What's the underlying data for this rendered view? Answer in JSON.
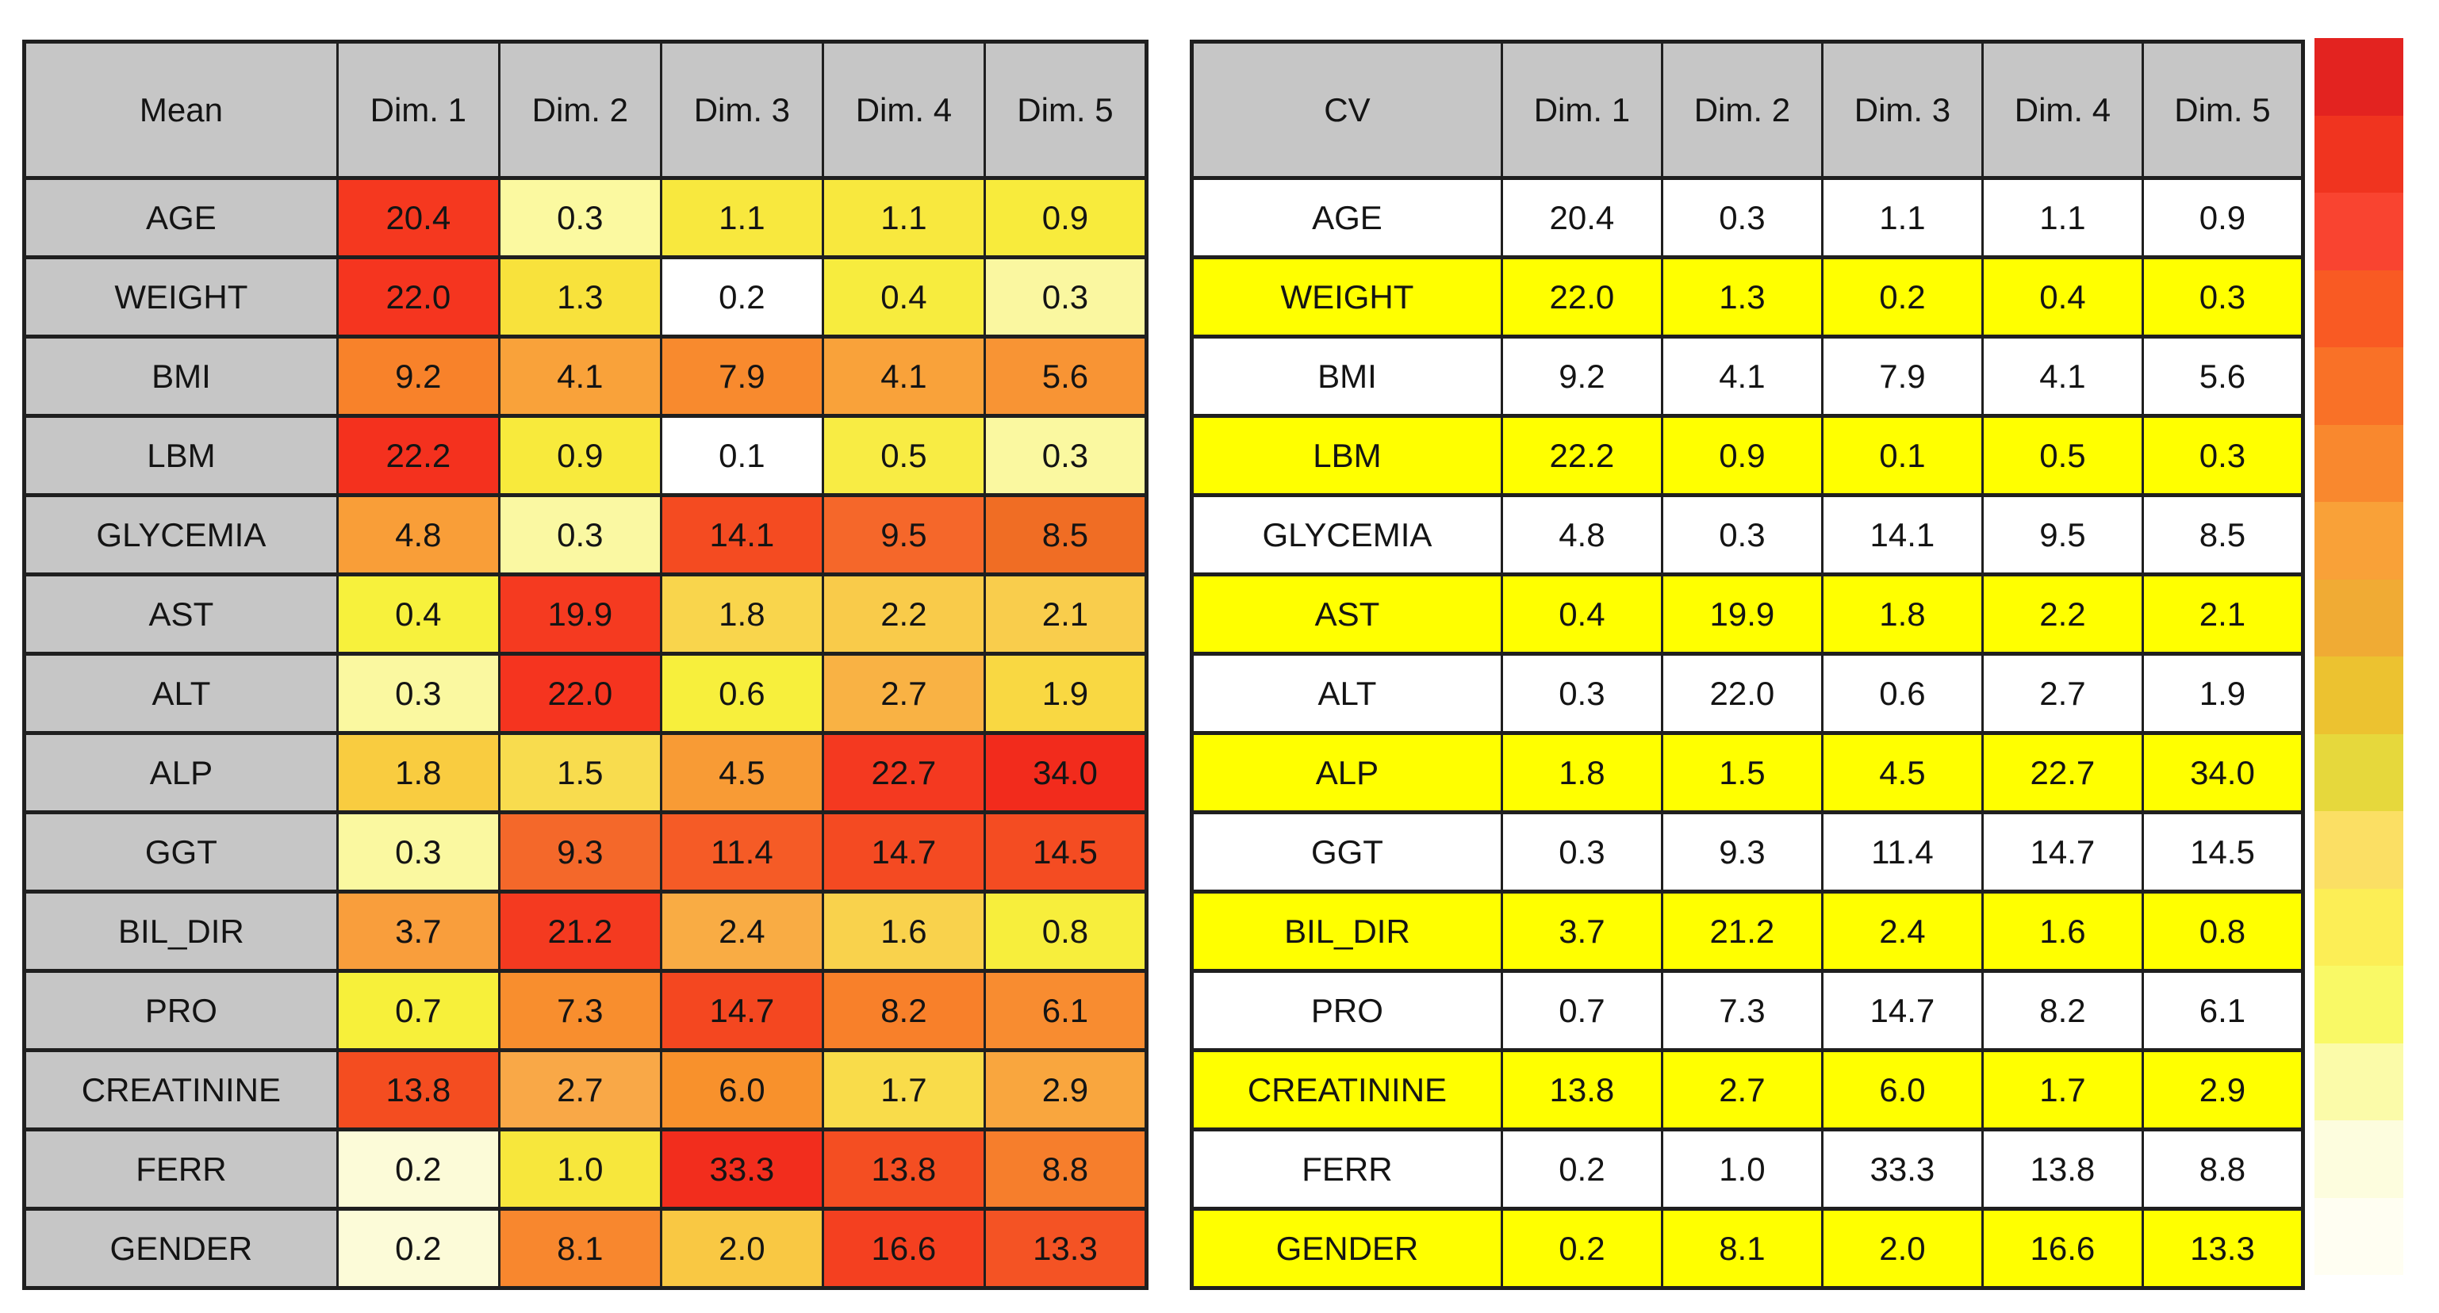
{
  "figure": {
    "columns": [
      "Dim. 1",
      "Dim. 2",
      "Dim. 3",
      "Dim. 4",
      "Dim. 5"
    ],
    "mean_table_title": "Mean",
    "cv_table_title": "CV",
    "header_bg": "#C6C6C6",
    "label_bg": "#C6C6C6",
    "cv_highlight_color": "#FFFF00",
    "cv_plain_color": "#FFFFFF",
    "rows": [
      {
        "label": "AGE",
        "values": [
          "20.4",
          "0.3",
          "1.1",
          "1.1",
          "0.9"
        ],
        "mean_colors": [
          "#F5381F",
          "#FBF9A0",
          "#F8E83E",
          "#F8E83E",
          "#F8EB3C"
        ],
        "cv_highlight": false
      },
      {
        "label": "WEIGHT",
        "values": [
          "22.0",
          "1.3",
          "0.2",
          "0.4",
          "0.3"
        ],
        "mean_colors": [
          "#F5351F",
          "#F8E23C",
          "#FFFFFF",
          "#F7EC3E",
          "#FAF7A0"
        ],
        "cv_highlight": true
      },
      {
        "label": "BMI",
        "values": [
          "9.2",
          "4.1",
          "7.9",
          "4.1",
          "5.6"
        ],
        "mean_colors": [
          "#F8822A",
          "#F9A23A",
          "#F88A2E",
          "#F9A23A",
          "#F89434"
        ],
        "cv_highlight": false
      },
      {
        "label": "LBM",
        "values": [
          "22.2",
          "0.9",
          "0.1",
          "0.5",
          "0.3"
        ],
        "mean_colors": [
          "#F4311E",
          "#F8EA3C",
          "#FFFFFF",
          "#F8EC44",
          "#FAF8A0"
        ],
        "cv_highlight": true
      },
      {
        "label": "GLYCEMIA",
        "values": [
          "4.8",
          "0.3",
          "14.1",
          "9.5",
          "8.5"
        ],
        "mean_colors": [
          "#F99E38",
          "#FAF8A2",
          "#F44B21",
          "#F5672A",
          "#F06D24"
        ],
        "cv_highlight": false
      },
      {
        "label": "AST",
        "values": [
          "0.4",
          "19.9",
          "1.8",
          "2.2",
          "2.1"
        ],
        "mean_colors": [
          "#F7F13C",
          "#F53A20",
          "#F9D54C",
          "#F9CB4A",
          "#F9CD4C"
        ],
        "cv_highlight": true
      },
      {
        "label": "ALT",
        "values": [
          "0.3",
          "22.0",
          "0.6",
          "2.7",
          "1.9"
        ],
        "mean_colors": [
          "#FAF8A0",
          "#F5341F",
          "#F7EF3C",
          "#F9B244",
          "#F9D842"
        ],
        "cv_highlight": false
      },
      {
        "label": "ALP",
        "values": [
          "1.8",
          "1.5",
          "4.5",
          "22.7",
          "34.0"
        ],
        "mean_colors": [
          "#F9CC40",
          "#F8DC4E",
          "#F89B35",
          "#F43920",
          "#F22B1C"
        ],
        "cv_highlight": true
      },
      {
        "label": "GGT",
        "values": [
          "0.3",
          "9.3",
          "11.4",
          "14.7",
          "14.5"
        ],
        "mean_colors": [
          "#FAF8A0",
          "#F4682A",
          "#F55B26",
          "#F44A22",
          "#F44C22"
        ],
        "cv_highlight": false
      },
      {
        "label": "BIL_DIR",
        "values": [
          "3.7",
          "21.2",
          "2.4",
          "1.6",
          "0.8"
        ],
        "mean_colors": [
          "#F99E3C",
          "#F43A20",
          "#F9AC44",
          "#F9D24C",
          "#F7EE3C"
        ],
        "cv_highlight": true
      },
      {
        "label": "PRO",
        "values": [
          "0.7",
          "7.3",
          "14.7",
          "8.2",
          "6.1"
        ],
        "mean_colors": [
          "#F7F03A",
          "#F88E2E",
          "#F44720",
          "#F8802A",
          "#F88C30"
        ],
        "cv_highlight": false
      },
      {
        "label": "CREATININE",
        "values": [
          "13.8",
          "2.7",
          "6.0",
          "1.7",
          "2.9"
        ],
        "mean_colors": [
          "#F44D20",
          "#F9A847",
          "#F8912C",
          "#F9DC4A",
          "#F9A63E"
        ],
        "cv_highlight": true
      },
      {
        "label": "FERR",
        "values": [
          "0.2",
          "1.0",
          "33.3",
          "13.8",
          "8.8"
        ],
        "mean_colors": [
          "#FCFBD8",
          "#F7E73C",
          "#F22D1D",
          "#F44E22",
          "#F67E2C"
        ],
        "cv_highlight": false
      },
      {
        "label": "GENDER",
        "values": [
          "0.2",
          "8.1",
          "2.0",
          "16.6",
          "13.3"
        ],
        "mean_colors": [
          "#FCFBD8",
          "#F8872E",
          "#F9C843",
          "#F44020",
          "#F45324"
        ],
        "cv_highlight": true
      }
    ],
    "colorbar": [
      "#E32320",
      "#F0341F",
      "#F94430",
      "#F95A23",
      "#F97127",
      "#F9882E",
      "#F9A138",
      "#F0AB34",
      "#ECC230",
      "#E6D83C",
      "#FBDF64",
      "#FCEE56",
      "#F9F966",
      "#FBFBA9",
      "#FDFDDE",
      "#FFFEF2"
    ]
  },
  "chart_data": [
    {
      "type": "heatmap",
      "title": "Mean",
      "columns": [
        "Dim. 1",
        "Dim. 2",
        "Dim. 3",
        "Dim. 4",
        "Dim. 5"
      ],
      "rows": [
        "AGE",
        "WEIGHT",
        "BMI",
        "LBM",
        "GLYCEMIA",
        "AST",
        "ALT",
        "ALP",
        "GGT",
        "BIL_DIR",
        "PRO",
        "CREATININE",
        "FERR",
        "GENDER"
      ],
      "values": [
        [
          20.4,
          0.3,
          1.1,
          1.1,
          0.9
        ],
        [
          22.0,
          1.3,
          0.2,
          0.4,
          0.3
        ],
        [
          9.2,
          4.1,
          7.9,
          4.1,
          5.6
        ],
        [
          22.2,
          0.9,
          0.1,
          0.5,
          0.3
        ],
        [
          4.8,
          0.3,
          14.1,
          9.5,
          8.5
        ],
        [
          0.4,
          19.9,
          1.8,
          2.2,
          2.1
        ],
        [
          0.3,
          22.0,
          0.6,
          2.7,
          1.9
        ],
        [
          1.8,
          1.5,
          4.5,
          22.7,
          34.0
        ],
        [
          0.3,
          9.3,
          11.4,
          14.7,
          14.5
        ],
        [
          3.7,
          21.2,
          2.4,
          1.6,
          0.8
        ],
        [
          0.7,
          7.3,
          14.7,
          8.2,
          6.1
        ],
        [
          13.8,
          2.7,
          6.0,
          1.7,
          2.9
        ],
        [
          0.2,
          1.0,
          33.3,
          13.8,
          8.8
        ],
        [
          0.2,
          8.1,
          2.0,
          16.6,
          13.3
        ]
      ],
      "value_range": [
        0,
        34
      ],
      "color_scale": {
        "low": "#FFFFFF",
        "mid": "#F9F966",
        "high": "#E32320",
        "note": "white to yellow to orange to red with increasing value; discrete 16-step legend bar at right"
      },
      "legend_position": "right"
    },
    {
      "type": "table",
      "title": "CV",
      "columns": [
        "Dim. 1",
        "Dim. 2",
        "Dim. 3",
        "Dim. 4",
        "Dim. 5"
      ],
      "rows": [
        "AGE",
        "WEIGHT",
        "BMI",
        "LBM",
        "GLYCEMIA",
        "AST",
        "ALT",
        "ALP",
        "GGT",
        "BIL_DIR",
        "PRO",
        "CREATININE",
        "FERR",
        "GENDER"
      ],
      "values": [
        [
          20.4,
          0.3,
          1.1,
          1.1,
          0.9
        ],
        [
          22.0,
          1.3,
          0.2,
          0.4,
          0.3
        ],
        [
          9.2,
          4.1,
          7.9,
          4.1,
          5.6
        ],
        [
          22.2,
          0.9,
          0.1,
          0.5,
          0.3
        ],
        [
          4.8,
          0.3,
          14.1,
          9.5,
          8.5
        ],
        [
          0.4,
          19.9,
          1.8,
          2.2,
          2.1
        ],
        [
          0.3,
          22.0,
          0.6,
          2.7,
          1.9
        ],
        [
          1.8,
          1.5,
          4.5,
          22.7,
          34.0
        ],
        [
          0.3,
          9.3,
          11.4,
          14.7,
          14.5
        ],
        [
          3.7,
          21.2,
          2.4,
          1.6,
          0.8
        ],
        [
          0.7,
          7.3,
          14.7,
          8.2,
          6.1
        ],
        [
          13.8,
          2.7,
          6.0,
          1.7,
          2.9
        ],
        [
          0.2,
          1.0,
          33.3,
          13.8,
          8.8
        ],
        [
          0.2,
          8.1,
          2.0,
          16.6,
          13.3
        ]
      ],
      "row_highlight": {
        "color": "#FFFF00",
        "highlighted_rows": [
          "WEIGHT",
          "LBM",
          "AST",
          "ALP",
          "BIL_DIR",
          "CREATININE",
          "GENDER"
        ]
      }
    }
  ]
}
